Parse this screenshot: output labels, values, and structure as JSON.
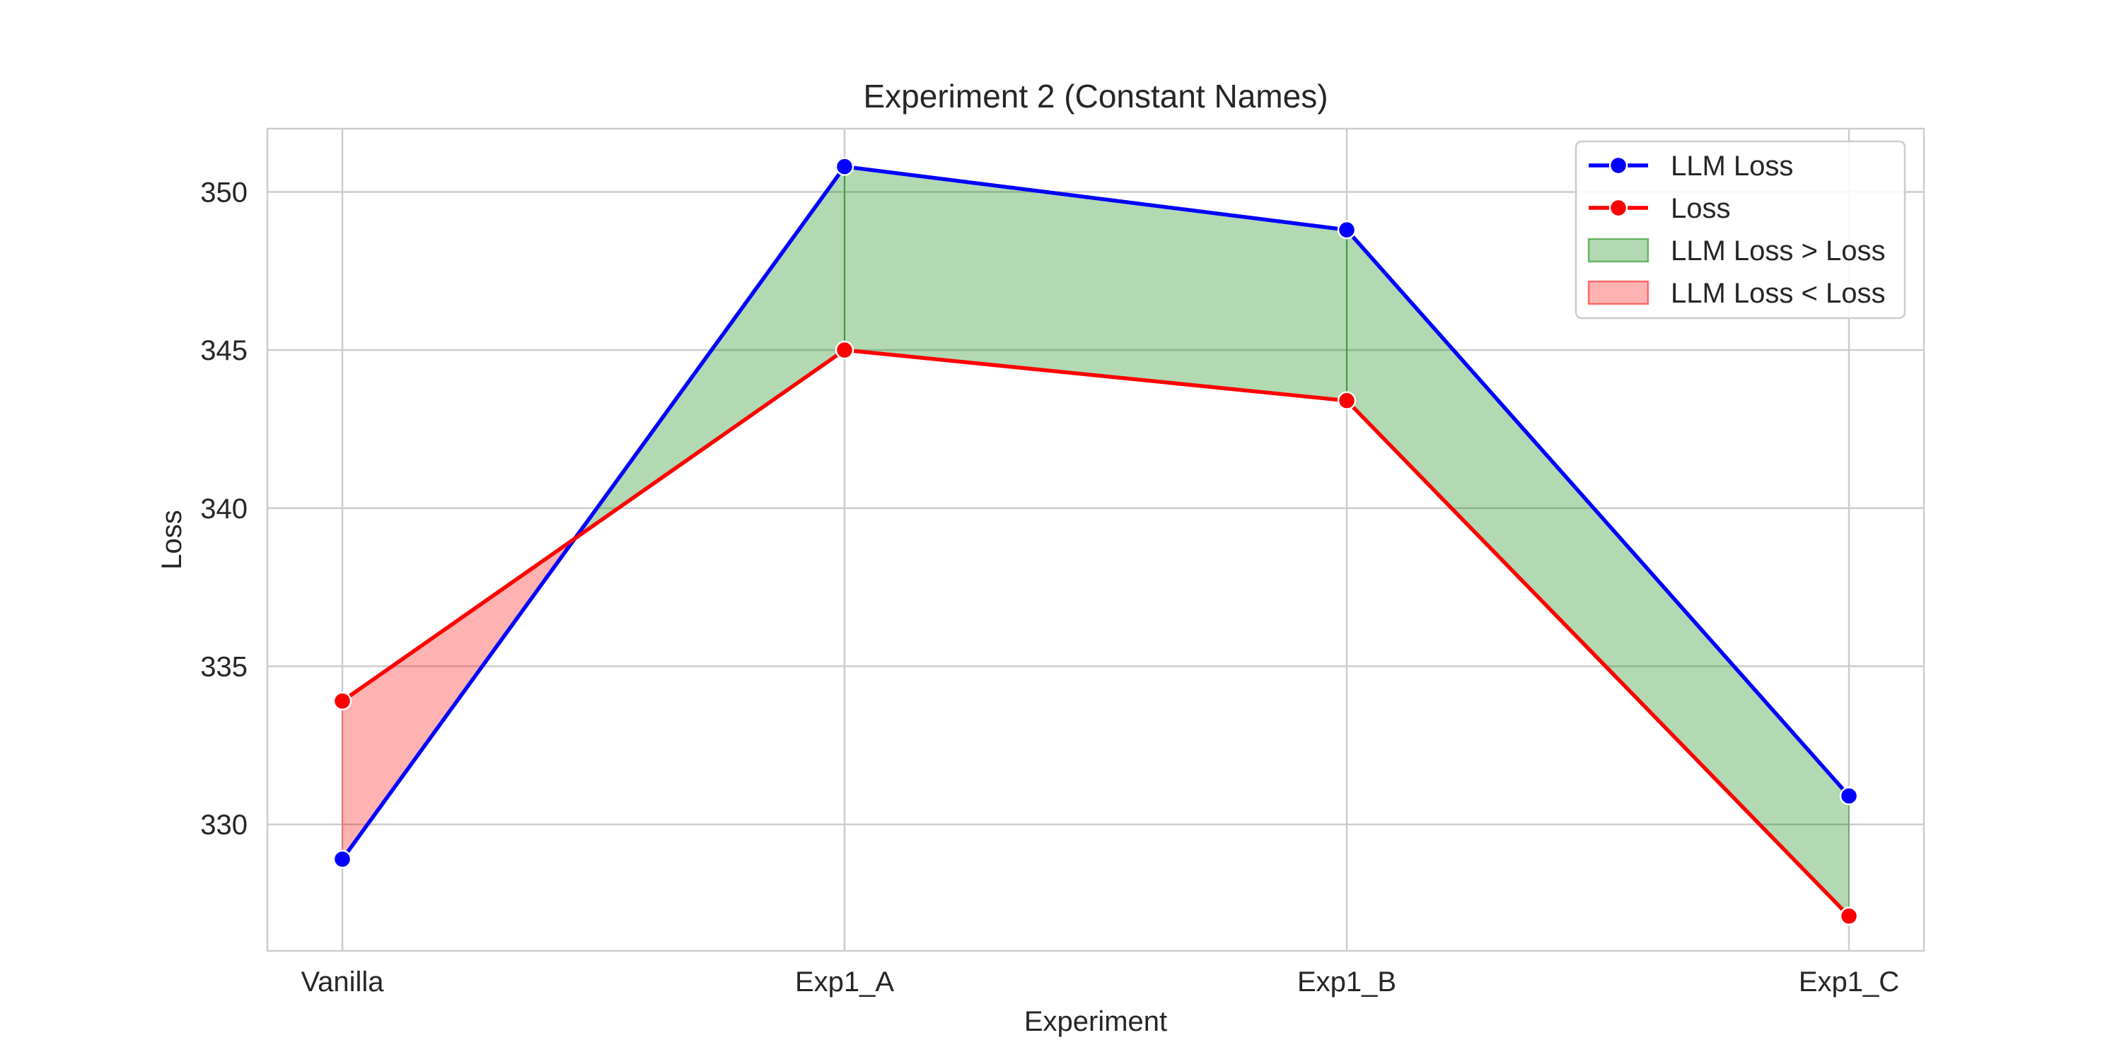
{
  "chart_data": {
    "type": "line",
    "title": "Experiment 2 (Constant Names)",
    "xlabel": "Experiment",
    "ylabel": "Loss",
    "categories": [
      "Vanilla",
      "Exp1_A",
      "Exp1_B",
      "Exp1_C"
    ],
    "ylim": [
      326.0,
      352.0
    ],
    "yticks": [
      330,
      335,
      340,
      345,
      350
    ],
    "grid": true,
    "legend_position": "top-right",
    "series": [
      {
        "name": "LLM Loss",
        "values": [
          328.9,
          350.8,
          348.8,
          330.9
        ],
        "color": "#0000ff",
        "marker": "circle"
      },
      {
        "name": "Loss",
        "values": [
          333.9,
          345.0,
          343.4,
          327.1
        ],
        "color": "#ff0000",
        "marker": "circle"
      }
    ],
    "fills": [
      {
        "name": "LLM Loss > Loss",
        "color": "#008000",
        "opacity": 0.3
      },
      {
        "name": "LLM Loss < Loss",
        "color": "#ff0000",
        "opacity": 0.3
      }
    ]
  }
}
